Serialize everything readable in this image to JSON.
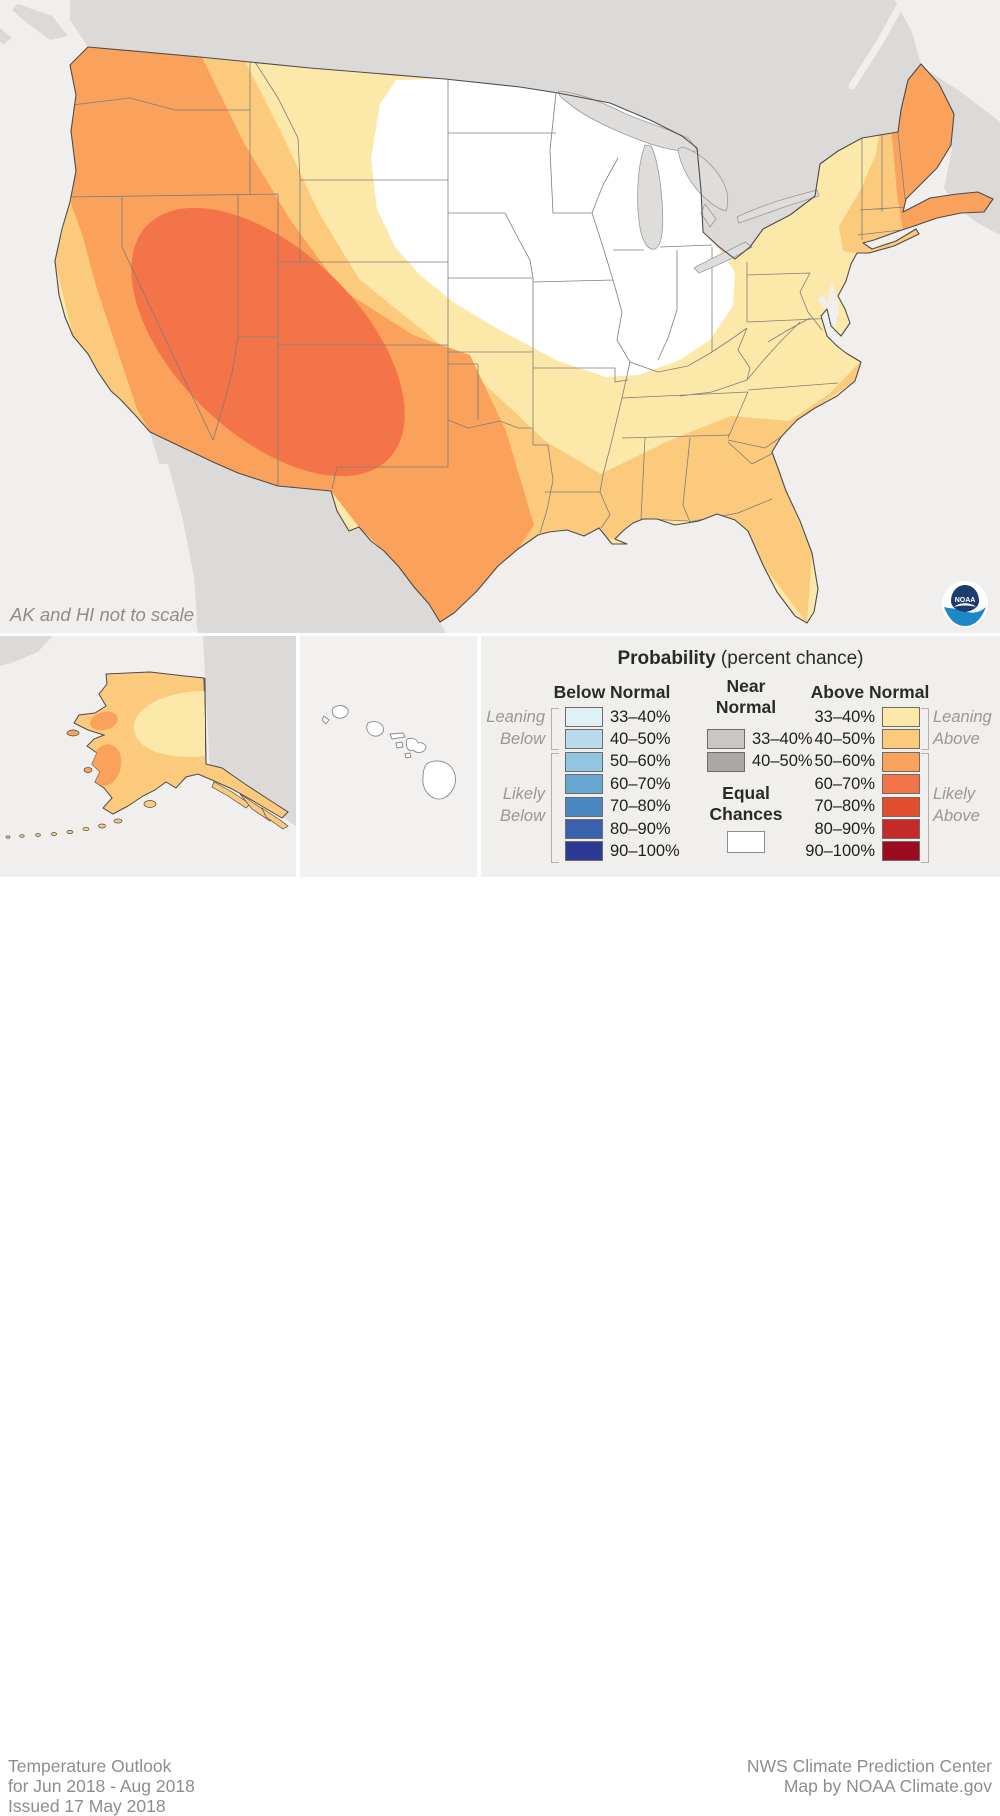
{
  "map": {
    "scale_note": "AK and HI not to scale"
  },
  "colors": {
    "ocean": "#f0efed",
    "land_foreign": "#dbdad8",
    "lake": "#dedddc",
    "equal": "#ffffff",
    "above_33_40": "#fce8a9",
    "above_40_50": "#fbca7c",
    "above_50_60": "#faa15b",
    "above_60_70": "#f4744a",
    "above_70_80": "#e14e2d",
    "above_80_90": "#c62a28",
    "above_90_100": "#9c0b1f",
    "below_33_40": "#dff0f7",
    "below_40_50": "#b9dcec",
    "below_50_60": "#90c6df",
    "below_60_70": "#67a6d1",
    "below_70_80": "#4a86c0",
    "below_80_90": "#3a62ac",
    "below_90_100": "#2c3a94",
    "near_33_40": "#c9c8c7",
    "near_40_50": "#a9a8a7",
    "logo_navy": "#1d3c6e",
    "logo_blue": "#1e87c5"
  },
  "legend": {
    "title": "Probability",
    "title_suffix": " (percent chance)",
    "below_header": "Below Normal",
    "near_header_line1": "Near",
    "near_header_line2": "Normal",
    "above_header": "Above Normal",
    "below_rows": [
      {
        "label": "33–40%",
        "color_key": "below_33_40"
      },
      {
        "label": "40–50%",
        "color_key": "below_40_50"
      },
      {
        "label": "50–60%",
        "color_key": "below_50_60"
      },
      {
        "label": "60–70%",
        "color_key": "below_60_70"
      },
      {
        "label": "70–80%",
        "color_key": "below_70_80"
      },
      {
        "label": "80–90%",
        "color_key": "below_80_90"
      },
      {
        "label": "90–100%",
        "color_key": "below_90_100"
      }
    ],
    "near_rows": [
      {
        "label": "33–40%",
        "color_key": "near_33_40"
      },
      {
        "label": "40–50%",
        "color_key": "near_40_50"
      }
    ],
    "above_rows": [
      {
        "label": "33–40%",
        "color_key": "above_33_40"
      },
      {
        "label": "40–50%",
        "color_key": "above_40_50"
      },
      {
        "label": "50–60%",
        "color_key": "above_50_60"
      },
      {
        "label": "60–70%",
        "color_key": "above_60_70"
      },
      {
        "label": "70–80%",
        "color_key": "above_70_80"
      },
      {
        "label": "80–90%",
        "color_key": "above_80_90"
      },
      {
        "label": "90–100%",
        "color_key": "above_90_100"
      }
    ],
    "equal_line1": "Equal",
    "equal_line2": "Chances",
    "leaning_below": [
      "Leaning",
      "Below"
    ],
    "likely_below": [
      "Likely",
      "Below"
    ],
    "leaning_above": [
      "Leaning",
      "Above"
    ],
    "likely_above": [
      "Likely",
      "Above"
    ]
  },
  "footer": {
    "left_lines": [
      "Temperature Outlook",
      "for Jun 2018 - Aug 2018",
      "Issued 17 May 2018"
    ],
    "right_lines": [
      "NWS Climate Prediction Center",
      "Map by NOAA Climate.gov"
    ]
  },
  "logo": {
    "text": "NOAA"
  }
}
